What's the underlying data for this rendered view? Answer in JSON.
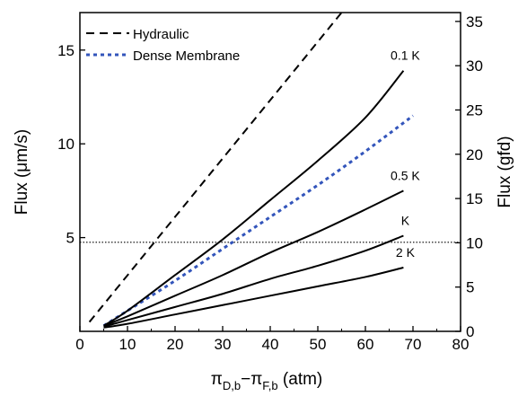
{
  "chart_data": {
    "type": "line",
    "xlabel": "πD,b−πF,b (atm)",
    "xlabel_parts": {
      "pi1": "π",
      "sub1": "D,b",
      "minus": "−",
      "pi2": "π",
      "sub2": "F,b",
      "unit": " (atm)"
    },
    "ylabel_left": "Flux (μm/s)",
    "ylabel_right": "Flux (gfd)",
    "xlim": [
      0,
      80
    ],
    "ylim_left": [
      0,
      17
    ],
    "ylim_right": [
      0,
      36
    ],
    "x_ticks": [
      0,
      10,
      20,
      30,
      40,
      50,
      60,
      70,
      80
    ],
    "y_left_ticks": [
      5,
      10,
      15
    ],
    "y_right_ticks": [
      0,
      5,
      10,
      15,
      20,
      25,
      30,
      35
    ],
    "legend_position": "top-left",
    "series": [
      {
        "name": "Hydraulic",
        "style": "dashed",
        "color": "#000000",
        "x": [
          2,
          55
        ],
        "y": [
          0.5,
          17
        ]
      },
      {
        "name": "Dense Membrane",
        "style": "dotted",
        "color": "#3355bb",
        "x": [
          5,
          10,
          20,
          30,
          40,
          50,
          60,
          70
        ],
        "y": [
          0.3,
          1.1,
          2.7,
          4.4,
          6.1,
          7.8,
          9.6,
          11.5
        ]
      },
      {
        "label": "0.1 K",
        "style": "solid",
        "color": "#000000",
        "x": [
          5,
          10,
          20,
          30,
          40,
          50,
          60,
          68
        ],
        "y": [
          0.3,
          1.1,
          3.0,
          4.9,
          7.0,
          9.1,
          11.4,
          13.9
        ]
      },
      {
        "label": "0.5 K",
        "style": "solid",
        "color": "#000000",
        "x": [
          5,
          10,
          20,
          30,
          40,
          50,
          60,
          68
        ],
        "y": [
          0.3,
          0.8,
          1.9,
          3.0,
          4.2,
          5.3,
          6.5,
          7.5
        ]
      },
      {
        "label": "K",
        "style": "solid",
        "color": "#000000",
        "x": [
          5,
          10,
          20,
          30,
          40,
          50,
          60,
          68
        ],
        "y": [
          0.25,
          0.6,
          1.3,
          2.0,
          2.8,
          3.5,
          4.3,
          5.1
        ]
      },
      {
        "label": "2 K",
        "style": "solid",
        "color": "#000000",
        "x": [
          5,
          10,
          20,
          30,
          40,
          50,
          60,
          68
        ],
        "y": [
          0.2,
          0.4,
          0.9,
          1.4,
          1.9,
          2.4,
          2.9,
          3.4
        ]
      }
    ],
    "reference_line": {
      "style": "dotted",
      "color": "#000000",
      "y": 4.75
    },
    "legend": [
      {
        "label": "Hydraulic",
        "style": "dashed",
        "color": "#000000"
      },
      {
        "label": "Dense Membrane",
        "style": "dotted",
        "color": "#3355bb"
      }
    ]
  }
}
